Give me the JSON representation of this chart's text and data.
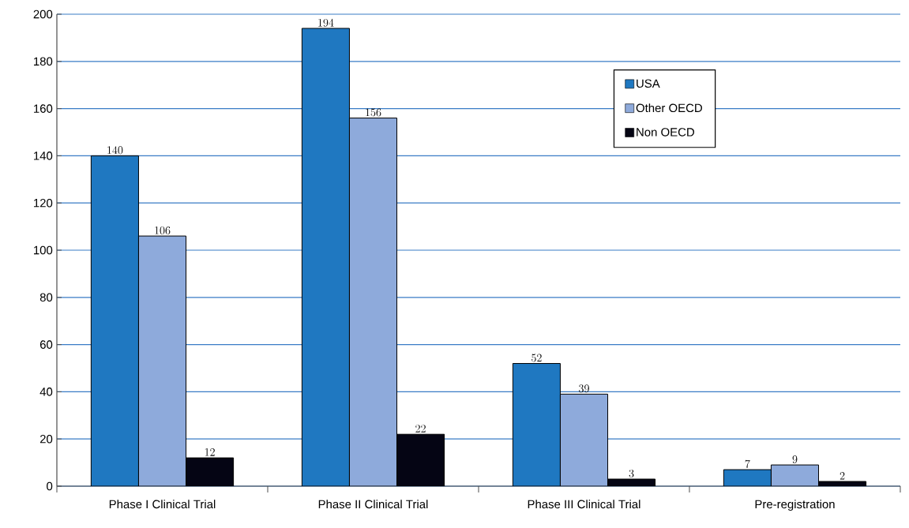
{
  "chart_data": {
    "type": "bar",
    "categories": [
      "Phase I Clinical Trial",
      "Phase II Clinical Trial",
      "Phase III Clinical Trial",
      "Pre-registration"
    ],
    "series": [
      {
        "name": "USA",
        "color": "#1f78c1",
        "values": [
          140,
          194,
          52,
          7
        ]
      },
      {
        "name": "Other OECD",
        "color": "#8eaadb",
        "values": [
          106,
          156,
          39,
          9
        ]
      },
      {
        "name": "Non OECD",
        "color": "#050514",
        "values": [
          12,
          22,
          3,
          2
        ]
      }
    ],
    "ylim": [
      0,
      200
    ],
    "yticks": [
      0,
      20,
      40,
      60,
      80,
      100,
      120,
      140,
      160,
      180,
      200
    ],
    "grid": "y",
    "legend": "top right",
    "data_labels": true
  }
}
